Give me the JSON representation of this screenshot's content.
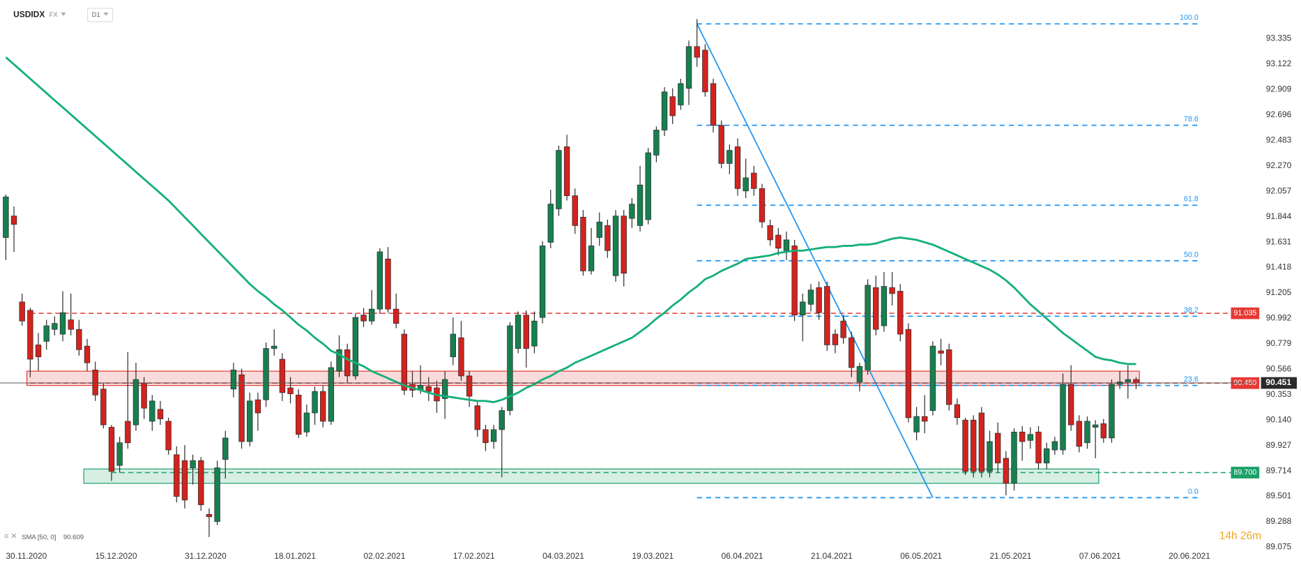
{
  "header": {
    "symbol": "USDIDX",
    "market": "FX",
    "timeframe": "D1"
  },
  "countdown": "14h 26m",
  "chart_data": {
    "type": "candlestick",
    "categories": [
      "30.11.2020",
      null,
      null,
      null,
      null,
      null,
      null,
      null,
      null,
      null,
      null,
      "15.12.2020",
      null,
      null,
      null,
      null,
      null,
      null,
      null,
      null,
      null,
      null,
      "31.12.2020",
      null,
      null,
      null,
      null,
      null,
      null,
      null,
      null,
      null,
      null,
      "18.01.2021",
      null,
      null,
      null,
      null,
      null,
      null,
      null,
      null,
      null,
      null,
      "02.02.2021",
      null,
      null,
      null,
      null,
      null,
      null,
      null,
      null,
      null,
      null,
      "17.02.2021",
      null,
      null,
      null,
      null,
      null,
      null,
      null,
      null,
      null,
      null,
      "04.03.2021",
      null,
      null,
      null,
      null,
      null,
      null,
      null,
      null,
      null,
      null,
      "19.03.2021",
      null,
      null,
      null,
      null,
      null,
      null,
      null,
      null,
      null,
      null,
      "06.04.2021",
      null,
      null,
      null,
      null,
      null,
      null,
      null,
      null,
      null,
      null,
      "21.04.2021",
      null,
      null,
      null,
      null,
      null,
      null,
      null,
      null,
      null,
      null,
      "06.05.2021",
      null,
      null,
      null,
      null,
      null,
      null,
      null,
      null,
      null,
      null,
      "21.05.2021",
      null,
      null,
      null,
      null,
      null,
      null,
      null,
      null,
      null,
      null,
      "07.06.2021",
      null,
      null,
      null,
      null,
      null,
      null,
      null,
      null,
      null,
      null,
      "20.06.2021"
    ],
    "open": [
      91.67,
      91.85,
      91.13,
      91.06,
      90.77,
      90.8,
      90.9,
      90.86,
      90.98,
      90.9,
      90.76,
      90.56,
      90.4,
      90.08,
      89.76,
      90.13,
      90.1,
      90.45,
      90.13,
      90.23,
      90.13,
      89.85,
      89.8,
      89.74,
      89.8,
      89.35,
      89.29,
      89.81,
      90.4,
      90.52,
      89.96,
      90.31,
      90.31,
      90.74,
      90.65,
      90.41,
      90.35,
      90.04,
      90.2,
      90.38,
      90.13,
      90.55,
      90.73,
      90.51,
      91.02,
      90.97,
      91.07,
      91.49,
      91.07,
      90.86,
      90.44,
      90.39,
      90.42,
      90.41,
      90.32,
      90.67,
      90.83,
      90.51,
      90.26,
      90.06,
      89.96,
      90.06,
      90.22,
      90.74,
      91.02,
      90.76,
      91.0,
      91.63,
      91.91,
      92.43,
      92.02,
      91.84,
      91.39,
      91.67,
      91.77,
      91.35,
      91.85,
      91.83,
      91.77,
      91.82,
      92.36,
      92.57,
      92.85,
      92.78,
      92.92,
      93.27,
      93.24,
      92.96,
      92.61,
      92.29,
      92.43,
      92.06,
      92.21,
      92.08,
      91.77,
      91.69,
      91.56,
      91.6,
      91.02,
      91.11,
      91.25,
      91.26,
      90.86,
      90.97,
      90.83,
      90.46,
      90.56,
      91.25,
      90.93,
      91.25,
      91.22,
      90.9,
      90.04,
      90.17,
      90.22,
      90.72,
      90.73,
      90.27,
      90.14,
      90.14,
      90.2,
      89.71,
      90.03,
      89.82,
      89.61,
      90.04,
      89.97,
      90.04,
      89.78,
      89.89,
      89.89,
      90.44,
      90.13,
      89.95,
      90.08,
      90.11,
      89.99,
      90.44,
      90.46,
      90.48,
      null,
      null,
      null,
      null
    ],
    "high": [
      92.03,
      91.93,
      91.2,
      91.08,
      90.87,
      90.98,
      91.01,
      91.22,
      91.2,
      90.98,
      90.82,
      90.63,
      90.45,
      90.1,
      90.0,
      90.71,
      90.62,
      90.5,
      90.35,
      90.3,
      90.16,
      89.92,
      89.93,
      89.85,
      89.83,
      89.4,
      89.8,
      90.05,
      90.62,
      90.57,
      90.37,
      90.37,
      90.79,
      90.9,
      90.7,
      90.5,
      90.4,
      90.27,
      90.42,
      90.43,
      90.63,
      90.85,
      90.78,
      91.03,
      91.08,
      91.23,
      91.58,
      91.59,
      91.2,
      90.9,
      90.55,
      90.6,
      90.5,
      90.47,
      90.55,
      91.0,
      90.97,
      90.55,
      90.3,
      90.1,
      90.1,
      90.25,
      90.96,
      91.05,
      91.06,
      91.05,
      91.64,
      92.07,
      92.44,
      92.53,
      92.08,
      91.9,
      91.75,
      91.88,
      91.82,
      91.9,
      91.9,
      92.0,
      92.27,
      92.42,
      92.6,
      92.93,
      92.92,
      93.0,
      93.32,
      93.5,
      93.29,
      93.0,
      92.65,
      92.45,
      92.5,
      92.33,
      92.27,
      92.12,
      91.82,
      91.75,
      91.72,
      91.65,
      91.2,
      91.28,
      91.3,
      91.3,
      90.9,
      91.02,
      90.88,
      90.62,
      91.32,
      91.35,
      91.38,
      91.38,
      91.28,
      90.95,
      90.25,
      90.35,
      90.8,
      90.82,
      90.78,
      90.32,
      90.16,
      90.18,
      90.25,
      90.05,
      90.12,
      89.88,
      90.07,
      90.09,
      90.08,
      90.09,
      89.95,
      90.0,
      90.53,
      90.6,
      90.18,
      90.17,
      90.14,
      90.15,
      90.48,
      90.55,
      90.6,
      90.5,
      null,
      null,
      null,
      null
    ],
    "low": [
      91.48,
      91.55,
      90.93,
      90.5,
      90.55,
      90.73,
      90.85,
      90.8,
      90.85,
      90.68,
      90.55,
      90.3,
      90.07,
      89.63,
      89.7,
      89.9,
      90.05,
      90.15,
      90.05,
      90.1,
      89.85,
      89.45,
      89.4,
      89.6,
      89.38,
      89.16,
      89.26,
      89.65,
      90.33,
      89.9,
      89.92,
      90.05,
      90.25,
      90.68,
      90.3,
      90.28,
      89.99,
      90.0,
      90.1,
      90.08,
      90.1,
      90.5,
      90.45,
      90.48,
      90.92,
      90.94,
      91.03,
      91.04,
      90.91,
      90.35,
      90.33,
      90.36,
      90.3,
      90.2,
      90.15,
      90.6,
      90.47,
      90.25,
      90.0,
      89.88,
      89.9,
      89.66,
      90.18,
      90.7,
      90.58,
      90.7,
      90.95,
      91.58,
      91.85,
      91.98,
      91.7,
      91.35,
      91.36,
      91.6,
      91.5,
      91.3,
      91.26,
      91.75,
      91.72,
      91.78,
      92.3,
      92.52,
      92.62,
      92.74,
      92.78,
      93.1,
      92.85,
      92.55,
      92.25,
      92.2,
      92.02,
      92.0,
      92.02,
      91.75,
      91.6,
      91.52,
      91.48,
      90.97,
      90.8,
      91.05,
      90.98,
      90.72,
      90.7,
      90.78,
      90.5,
      90.38,
      90.52,
      90.85,
      90.88,
      91.1,
      90.8,
      90.12,
      89.97,
      90.03,
      90.18,
      90.6,
      90.22,
      90.1,
      89.68,
      89.66,
      89.66,
      89.66,
      89.7,
      89.51,
      89.55,
      89.8,
      89.9,
      89.73,
      89.73,
      89.85,
      89.85,
      90.05,
      89.87,
      89.9,
      89.82,
      89.95,
      89.95,
      90.4,
      90.32,
      90.4,
      null,
      null,
      null,
      null
    ],
    "close": [
      92.01,
      91.78,
      90.97,
      90.65,
      90.67,
      90.93,
      90.95,
      91.04,
      90.9,
      90.73,
      90.62,
      90.35,
      90.1,
      89.71,
      89.95,
      89.95,
      90.48,
      90.24,
      90.3,
      90.15,
      89.89,
      89.5,
      89.47,
      89.8,
      89.43,
      89.33,
      89.74,
      89.99,
      90.56,
      89.96,
      90.3,
      90.2,
      90.74,
      90.76,
      90.37,
      90.36,
      90.02,
      90.2,
      90.38,
      90.13,
      90.58,
      90.73,
      90.51,
      91.0,
      90.97,
      91.07,
      91.55,
      91.07,
      90.95,
      90.39,
      90.39,
      90.43,
      90.38,
      90.3,
      90.48,
      90.86,
      90.51,
      90.34,
      90.06,
      89.95,
      90.06,
      90.22,
      90.93,
      91.02,
      90.74,
      90.97,
      91.6,
      91.95,
      92.4,
      92.02,
      91.77,
      91.39,
      91.6,
      91.8,
      91.56,
      91.85,
      91.37,
      91.95,
      92.11,
      92.38,
      92.57,
      92.89,
      92.69,
      92.96,
      93.27,
      93.18,
      92.89,
      92.61,
      92.29,
      92.4,
      92.08,
      92.17,
      92.08,
      91.8,
      91.65,
      91.58,
      91.65,
      91.02,
      91.13,
      91.23,
      91.04,
      90.77,
      90.77,
      90.83,
      90.58,
      90.59,
      91.27,
      90.9,
      91.26,
      91.2,
      90.86,
      90.16,
      90.17,
      90.13,
      90.76,
      90.7,
      90.27,
      90.16,
      89.71,
      89.71,
      89.71,
      89.96,
      89.78,
      89.61,
      90.04,
      89.96,
      90.02,
      89.78,
      89.9,
      89.96,
      90.44,
      90.1,
      89.92,
      90.13,
      90.1,
      89.99,
      90.44,
      90.46,
      90.48,
      90.451,
      null,
      null,
      null,
      null
    ],
    "up_color": "#17804f",
    "down_color": "#d3231e",
    "ylim": [
      88.99,
      93.66
    ],
    "yticks": [
      93.335,
      93.122,
      92.909,
      92.696,
      92.483,
      {
        "value": 92.27,
        "label": "92.270"
      },
      92.057,
      91.844,
      91.631,
      91.418,
      91.205,
      90.992,
      90.779,
      90.566,
      90.353,
      {
        "value": 90.14,
        "label": "90.140"
      },
      89.927,
      89.714,
      89.501,
      89.288,
      89.075
    ],
    "sma": {
      "name": "SMA [50, 0]",
      "color": "#16b07a",
      "values": [
        93.18,
        93.12,
        93.06,
        93.0,
        92.94,
        92.88,
        92.82,
        92.76,
        92.7,
        92.64,
        92.58,
        92.52,
        92.46,
        92.4,
        92.34,
        92.28,
        92.22,
        92.16,
        92.1,
        92.04,
        91.98,
        91.91,
        91.84,
        91.77,
        91.7,
        91.63,
        91.56,
        91.49,
        91.42,
        91.35,
        91.28,
        91.22,
        91.17,
        91.11,
        91.06,
        91.0,
        90.94,
        90.89,
        90.83,
        90.78,
        90.72,
        90.69,
        90.65,
        90.62,
        90.59,
        90.55,
        90.52,
        90.49,
        90.46,
        90.43,
        90.41,
        90.39,
        90.37,
        90.35,
        90.34,
        90.33,
        90.32,
        90.31,
        90.3,
        90.3,
        90.29,
        90.31,
        90.34,
        90.37,
        90.41,
        90.44,
        90.48,
        90.51,
        90.55,
        90.58,
        90.62,
        90.65,
        90.68,
        90.71,
        90.74,
        90.77,
        90.8,
        90.83,
        90.88,
        90.93,
        90.99,
        91.04,
        91.1,
        91.15,
        91.21,
        91.26,
        91.32,
        91.35,
        91.39,
        91.42,
        91.45,
        91.49,
        91.5,
        91.51,
        91.52,
        91.54,
        91.55,
        91.56,
        91.56,
        91.57,
        91.58,
        91.59,
        91.59,
        91.6,
        91.6,
        91.61,
        91.61,
        91.62,
        91.64,
        91.66,
        91.67,
        91.66,
        91.65,
        91.63,
        91.61,
        91.58,
        91.55,
        91.52,
        91.49,
        91.46,
        91.43,
        91.4,
        91.36,
        91.31,
        91.25,
        91.18,
        91.11,
        91.05,
        90.99,
        90.93,
        90.87,
        90.82,
        90.77,
        90.72,
        90.67,
        90.65,
        90.64,
        90.62,
        90.61,
        90.609,
        null,
        null,
        null,
        null
      ]
    },
    "levels": [
      {
        "value": 91.035,
        "color": "#e53935",
        "start": 3
      },
      {
        "value": 90.45,
        "label": "90.450",
        "color": "#e53935",
        "start": 3
      },
      {
        "value": 89.7,
        "label": "89.700",
        "color": "#1aa169",
        "start": 13
      }
    ],
    "zones": [
      {
        "low": 90.43,
        "high": 90.55,
        "start": 3,
        "end": 139,
        "color": "#e53935"
      },
      {
        "low": 89.61,
        "high": 89.73,
        "start": 10,
        "end": 134,
        "color": "#1aa169"
      }
    ],
    "fibonacci": {
      "color": "#2196f3",
      "start": 85,
      "levels": [
        {
          "label": "100.0",
          "value": 93.46
        },
        {
          "label": "78.6",
          "value": 92.61
        },
        {
          "label": "61.8",
          "value": 91.94
        },
        {
          "label": "50.0",
          "value": 91.475
        },
        {
          "label": "38.2",
          "value": 91.01
        },
        {
          "label": "23.6",
          "value": 90.43
        },
        {
          "label": "0.0",
          "value": 89.49
        }
      ]
    },
    "trendline": {
      "color": "#2196f3",
      "from": {
        "index": 85,
        "value": 93.46
      },
      "to": {
        "index": 114,
        "value": 89.49
      }
    },
    "price_line_color": "#555555"
  }
}
